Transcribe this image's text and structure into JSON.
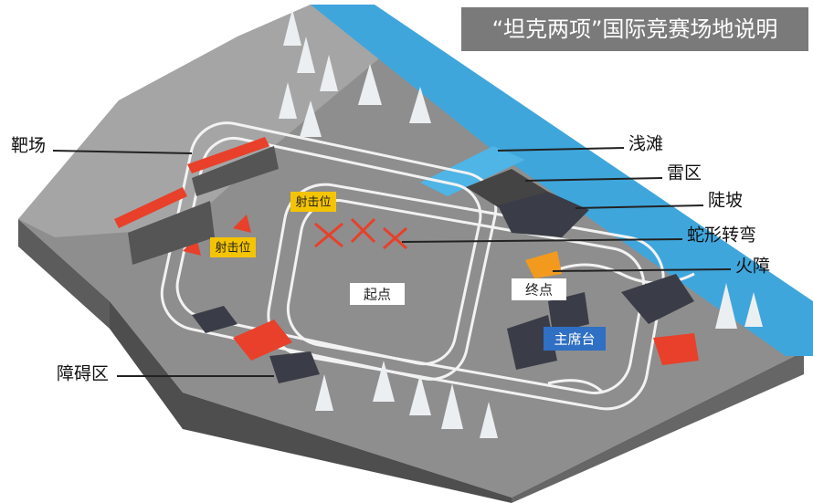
{
  "title": "“坦克两项”国际竞赛场地说明",
  "callouts": [
    {
      "label": "靶场"
    },
    {
      "label": "浅滩"
    },
    {
      "label": "雷区"
    },
    {
      "label": "陡坡"
    },
    {
      "label": "蛇形转弯"
    },
    {
      "label": "火障"
    },
    {
      "label": "障碍区"
    }
  ],
  "map_labels": [
    {
      "label": "射击位"
    },
    {
      "label": "射击位"
    },
    {
      "label": "起点"
    },
    {
      "label": "终点"
    },
    {
      "label": "主席台"
    }
  ]
}
